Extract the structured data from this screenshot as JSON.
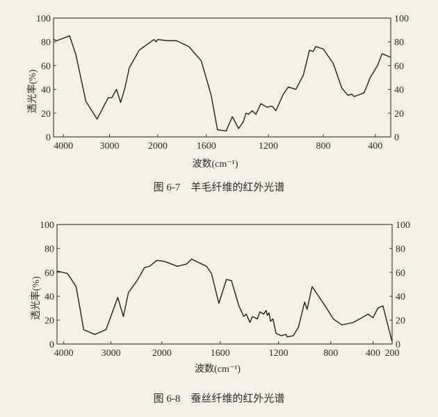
{
  "chart_data": [
    {
      "type": "line",
      "title": "",
      "caption": "图 6-7　羊毛纤维的红外光谱",
      "xlabel": "波数(cm⁻¹)",
      "ylabel": "透光率(%)",
      "ylim": [
        0,
        100
      ],
      "xlim": [
        4216,
        285
      ],
      "x_scale": "piecewise-linear (non-uniform between ticks)",
      "grid": false,
      "x_ticks": [
        "4000",
        "3000",
        "2000",
        "1600",
        "1200",
        "800",
        "400"
      ],
      "y_ticks": [
        "0",
        "20",
        "40",
        "60",
        "80",
        "100"
      ],
      "series": [
        {
          "color": "#1e1e1e",
          "x": [
            4216,
            4146,
            3865,
            3730,
            3514,
            3270,
            3027,
            2949,
            2856,
            2769,
            2682,
            2590,
            2385,
            2077,
            2036,
            2000,
            1928,
            1846,
            1744,
            1641,
            1568,
            1528,
            1472,
            1432,
            1392,
            1360,
            1344,
            1328,
            1304,
            1280,
            1248,
            1208,
            1173,
            1145,
            1091,
            1055,
            1000,
            945,
            900,
            873,
            855,
            800,
            724,
            657,
            610,
            581,
            562,
            486,
            438,
            383,
            349,
            285
          ],
          "y": [
            82,
            81,
            85,
            69,
            30,
            15,
            33,
            33,
            40,
            29,
            41,
            58,
            73,
            82,
            80,
            82,
            81,
            81,
            76,
            64,
            35,
            6,
            5,
            17,
            7,
            13,
            20,
            19,
            22,
            19,
            28,
            25,
            26,
            22,
            36,
            42,
            40,
            52,
            73,
            72,
            76,
            74,
            62,
            41,
            35,
            36,
            34,
            37,
            50,
            60,
            70,
            67
          ]
        }
      ]
    },
    {
      "type": "line",
      "title": "",
      "caption": "图 6-8　蚕丝纤维的红外光谱",
      "xlabel": "波数(cm⁻¹)",
      "ylabel": "透光率(%)",
      "ylim": [
        0,
        100
      ],
      "xlim": [
        4142,
        200
      ],
      "x_scale": "piecewise-linear (non-uniform between ticks)",
      "grid": false,
      "x_ticks": [
        "4000",
        "3000",
        "2000",
        "1600",
        "1200",
        "800",
        "400",
        "200"
      ],
      "y_ticks": [
        "0",
        "20",
        "40",
        "60",
        "80",
        "100"
      ],
      "series": [
        {
          "color": "#1e1e1e",
          "x": [
            4142,
            3921,
            3737,
            3647,
            3579,
            3342,
            3105,
            2866,
            2756,
            2658,
            2488,
            2341,
            2244,
            2098,
            1979,
            1894,
            1830,
            1796,
            1694,
            1660,
            1609,
            1557,
            1523,
            1472,
            1438,
            1421,
            1396,
            1379,
            1345,
            1328,
            1302,
            1285,
            1277,
            1265,
            1255,
            1238,
            1217,
            1181,
            1143,
            1133,
            1086,
            1048,
            1000,
            981,
            943,
            838,
            776,
            694,
            588,
            506,
            447,
            400,
            349,
            297,
            200
          ],
          "y": [
            61,
            59,
            48,
            28,
            12,
            8,
            12,
            39,
            23,
            43,
            53,
            64,
            65,
            70,
            69,
            65,
            67,
            71,
            65,
            59,
            34,
            54,
            53,
            32,
            23,
            25,
            18,
            23,
            21,
            27,
            25,
            28,
            24,
            26,
            19,
            21,
            9,
            7,
            8,
            6,
            7,
            14,
            35,
            29,
            48,
            31,
            21,
            16,
            18,
            22,
            25,
            22,
            30,
            32,
            2
          ]
        }
      ]
    }
  ]
}
